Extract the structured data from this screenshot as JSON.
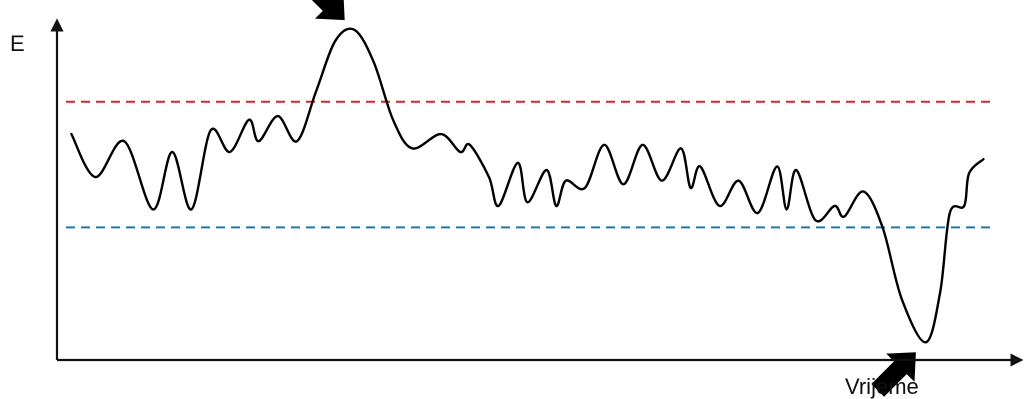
{
  "chart_data": {
    "type": "line",
    "title": "",
    "ylabel": "E",
    "xlabel": "Vrijeme",
    "grid": false,
    "legend": "none",
    "ylim": [
      0,
      100
    ],
    "xlim": [
      0,
      100
    ],
    "thresholds": [
      {
        "value": 75,
        "color": "#d62728",
        "style": "dashed"
      },
      {
        "value": 40,
        "color": "#1f77b4",
        "style": "dashed"
      }
    ],
    "series": [
      {
        "color": "#000000",
        "points": [
          [
            1.5,
            66
          ],
          [
            4,
            54
          ],
          [
            7,
            64
          ],
          [
            10,
            45
          ],
          [
            12,
            61
          ],
          [
            14,
            45
          ],
          [
            16,
            67
          ],
          [
            18,
            61
          ],
          [
            20,
            70
          ],
          [
            21,
            64
          ],
          [
            23,
            71
          ],
          [
            25,
            64
          ],
          [
            27,
            78
          ],
          [
            29,
            92
          ],
          [
            31,
            95
          ],
          [
            33,
            86
          ],
          [
            35,
            70
          ],
          [
            37,
            62
          ],
          [
            40,
            66
          ],
          [
            42,
            61
          ],
          [
            43,
            63
          ],
          [
            45,
            54
          ],
          [
            46,
            46
          ],
          [
            48,
            58
          ],
          [
            49,
            47
          ],
          [
            51,
            56
          ],
          [
            52,
            46
          ],
          [
            53,
            53
          ],
          [
            55,
            51
          ],
          [
            57,
            63
          ],
          [
            59,
            52
          ],
          [
            61,
            63
          ],
          [
            63,
            53
          ],
          [
            65,
            62
          ],
          [
            66,
            51
          ],
          [
            67,
            57
          ],
          [
            69,
            46
          ],
          [
            71,
            53
          ],
          [
            73,
            44
          ],
          [
            75,
            57
          ],
          [
            76,
            45
          ],
          [
            77,
            56
          ],
          [
            79,
            42
          ],
          [
            81,
            46
          ],
          [
            82,
            43
          ],
          [
            84,
            50
          ],
          [
            86,
            40
          ],
          [
            88,
            20
          ],
          [
            90.5,
            8
          ],
          [
            92,
            22
          ],
          [
            93,
            44
          ],
          [
            94.5,
            46
          ],
          [
            95,
            55
          ],
          [
            96.5,
            59
          ]
        ]
      }
    ],
    "annotations": [
      {
        "type": "arrow",
        "target": [
          31,
          95
        ],
        "direction": "down-right"
      },
      {
        "type": "arrow",
        "target": [
          90.5,
          8
        ],
        "direction": "up-right"
      }
    ]
  }
}
